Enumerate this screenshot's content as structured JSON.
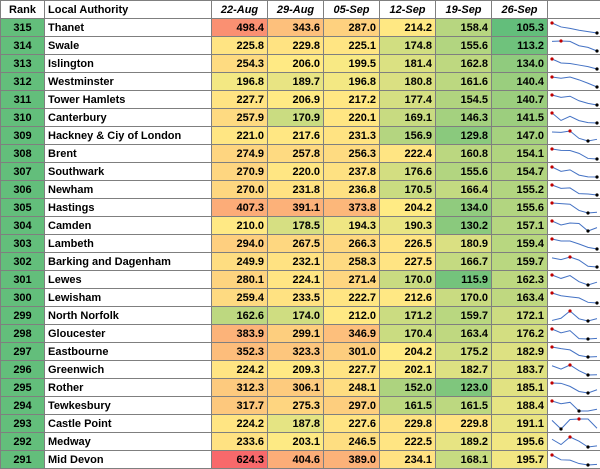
{
  "header": {
    "rank": "Rank",
    "name": "Local Authority",
    "dates": [
      "22-Aug",
      "29-Aug",
      "05-Sep",
      "12-Sep",
      "19-Sep",
      "26-Sep"
    ]
  },
  "colors": {
    "rank_fill": "#63be7b",
    "scale_low": "#63be7b",
    "scale_mid": "#ffeb84",
    "scale_high": "#f8696b",
    "sparkline": "#4472c4",
    "sparkline_marker": "#c00000",
    "grid": "#7f7f7f"
  },
  "rows": [
    {
      "rank": "315",
      "name": "Thanet",
      "values": [
        "498.4",
        "343.6",
        "287.0",
        "214.2",
        "158.4",
        "105.3"
      ]
    },
    {
      "rank": "314",
      "name": "Swale",
      "values": [
        "225.8",
        "229.8",
        "225.1",
        "174.8",
        "155.6",
        "113.2"
      ]
    },
    {
      "rank": "313",
      "name": "Islington",
      "values": [
        "254.3",
        "206.0",
        "199.5",
        "181.4",
        "162.8",
        "134.0"
      ]
    },
    {
      "rank": "312",
      "name": "Westminster",
      "values": [
        "196.8",
        "189.7",
        "196.8",
        "180.8",
        "161.6",
        "140.4"
      ]
    },
    {
      "rank": "311",
      "name": "Tower Hamlets",
      "values": [
        "227.7",
        "206.9",
        "217.2",
        "177.4",
        "154.5",
        "140.7"
      ]
    },
    {
      "rank": "310",
      "name": "Canterbury",
      "values": [
        "257.9",
        "170.9",
        "220.1",
        "169.1",
        "146.3",
        "141.5"
      ]
    },
    {
      "rank": "309",
      "name": "Hackney & Ciy of London",
      "values": [
        "221.0",
        "217.6",
        "231.3",
        "156.9",
        "129.8",
        "147.0"
      ]
    },
    {
      "rank": "308",
      "name": "Brent",
      "values": [
        "274.9",
        "257.8",
        "256.3",
        "222.4",
        "160.8",
        "154.1"
      ]
    },
    {
      "rank": "307",
      "name": "Southwark",
      "values": [
        "270.9",
        "220.0",
        "237.8",
        "176.6",
        "155.6",
        "154.7"
      ]
    },
    {
      "rank": "306",
      "name": "Newham",
      "values": [
        "270.0",
        "231.8",
        "236.8",
        "170.5",
        "166.4",
        "155.2"
      ]
    },
    {
      "rank": "305",
      "name": "Hastings",
      "values": [
        "407.3",
        "391.1",
        "373.8",
        "204.2",
        "134.0",
        "155.6"
      ]
    },
    {
      "rank": "304",
      "name": "Camden",
      "values": [
        "210.0",
        "178.5",
        "194.3",
        "190.3",
        "130.2",
        "157.1"
      ]
    },
    {
      "rank": "303",
      "name": "Lambeth",
      "values": [
        "294.0",
        "267.5",
        "266.3",
        "226.5",
        "180.9",
        "159.4"
      ]
    },
    {
      "rank": "302",
      "name": "Barking and Dagenham",
      "values": [
        "249.9",
        "232.1",
        "258.3",
        "227.5",
        "166.7",
        "159.7"
      ]
    },
    {
      "rank": "301",
      "name": "Lewes",
      "values": [
        "280.1",
        "224.1",
        "271.4",
        "170.0",
        "115.9",
        "162.3"
      ]
    },
    {
      "rank": "300",
      "name": "Lewisham",
      "values": [
        "259.4",
        "233.5",
        "222.7",
        "212.6",
        "170.0",
        "163.4"
      ]
    },
    {
      "rank": "299",
      "name": "North Norfolk",
      "values": [
        "162.6",
        "174.0",
        "212.0",
        "171.2",
        "159.7",
        "172.1"
      ]
    },
    {
      "rank": "298",
      "name": "Gloucester",
      "values": [
        "383.9",
        "299.1",
        "346.9",
        "170.4",
        "163.4",
        "176.2"
      ]
    },
    {
      "rank": "297",
      "name": "Eastbourne",
      "values": [
        "352.3",
        "323.3",
        "301.0",
        "204.2",
        "175.2",
        "182.9"
      ]
    },
    {
      "rank": "296",
      "name": "Greenwich",
      "values": [
        "224.2",
        "209.3",
        "227.7",
        "202.1",
        "182.7",
        "183.7"
      ]
    },
    {
      "rank": "295",
      "name": "Rother",
      "values": [
        "312.3",
        "306.1",
        "248.1",
        "152.0",
        "123.0",
        "185.1"
      ]
    },
    {
      "rank": "294",
      "name": "Tewkesbury",
      "values": [
        "317.7",
        "275.3",
        "297.0",
        "161.5",
        "161.5",
        "188.4"
      ]
    },
    {
      "rank": "293",
      "name": "Castle Point",
      "values": [
        "224.2",
        "187.8",
        "227.6",
        "229.8",
        "229.8",
        "191.1"
      ]
    },
    {
      "rank": "292",
      "name": "Medway",
      "values": [
        "233.6",
        "203.1",
        "246.5",
        "222.5",
        "189.2",
        "195.6"
      ]
    },
    {
      "rank": "291",
      "name": "Mid Devon",
      "values": [
        "624.3",
        "404.6",
        "389.0",
        "234.1",
        "168.1",
        "195.7"
      ]
    }
  ]
}
